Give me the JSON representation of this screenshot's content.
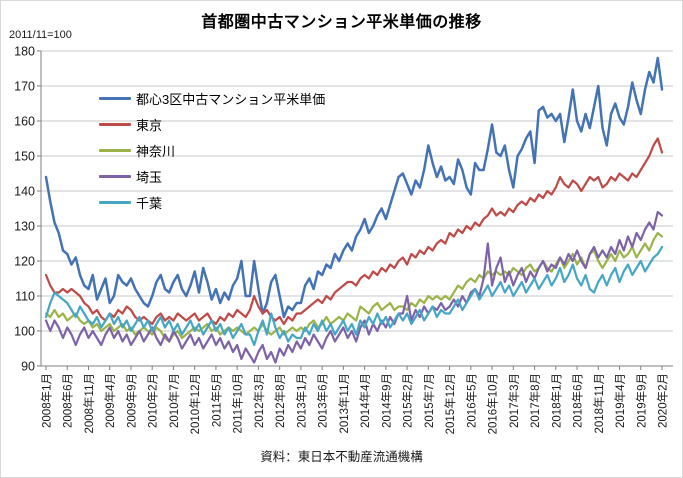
{
  "title": "首都圏中古マンション平米単価の推移",
  "index_note": "2011/11=100",
  "source_note": "資料：東日本不動産流通機構",
  "chart_data": {
    "type": "line",
    "title": "首都圏中古マンション平米単価の推移",
    "index_note": "2011/11=100",
    "source": "資料：東日本不動産流通機構",
    "grid": "horizontal",
    "legend_position": "inside-upper-left",
    "x_axis": {
      "unit": "month",
      "start": "2008年1月",
      "end": "2020年2月",
      "tick_interval_months": 5,
      "tick_labels": [
        "2008年1月",
        "2008年6月",
        "2008年11月",
        "2009年4月",
        "2009年9月",
        "2010年2月",
        "2010年7月",
        "2010年12月",
        "2011年5月",
        "2011年10月",
        "2012年3月",
        "2012年8月",
        "2013年1月",
        "2013年6月",
        "2013年11月",
        "2014年4月",
        "2014年9月",
        "2015年2月",
        "2015年7月",
        "2015年12月",
        "2016年5月",
        "2016年10月",
        "2017年3月",
        "2017年8月",
        "2018年1月",
        "2018年6月",
        "2018年11月",
        "2019年4月",
        "2019年9月",
        "2020年2月"
      ]
    },
    "y_axis": {
      "min": 90,
      "max": 180,
      "tick_step": 10,
      "ticks": [
        90,
        100,
        110,
        120,
        130,
        140,
        150,
        160,
        170,
        180
      ]
    },
    "series": [
      {
        "name": "都心3区中古マンション平米単価",
        "id": "toshin-3ku",
        "color": "#4473B5",
        "values": [
          144,
          137,
          131,
          128,
          123,
          122,
          119,
          121,
          116,
          113,
          112,
          116,
          109,
          112,
          115,
          108,
          110,
          116,
          114,
          113,
          115,
          112,
          110,
          108,
          107,
          110,
          114,
          116,
          112,
          111,
          114,
          116,
          112,
          110,
          113,
          117,
          111,
          118,
          114,
          109,
          112,
          108,
          111,
          109,
          113,
          115,
          120,
          110,
          110,
          120,
          112,
          105,
          108,
          114,
          116,
          110,
          104,
          107,
          106,
          108,
          108,
          113,
          115,
          112,
          117,
          116,
          119,
          118,
          122,
          120,
          123,
          125,
          123,
          127,
          129,
          132,
          128,
          130,
          133,
          135,
          132,
          136,
          140,
          144,
          145,
          142,
          139,
          143,
          141,
          146,
          153,
          148,
          144,
          147,
          143,
          144,
          142,
          149,
          146,
          141,
          139,
          148,
          146,
          146,
          152,
          159,
          151,
          150,
          153,
          146,
          141,
          150,
          152,
          155,
          157,
          148,
          163,
          164,
          161,
          162,
          160,
          162,
          154,
          161,
          169,
          160,
          157,
          162,
          158,
          164,
          170,
          158,
          153,
          162,
          165,
          161,
          159,
          164,
          171,
          166,
          162,
          169,
          174,
          171,
          178,
          169
        ]
      },
      {
        "name": "東京",
        "id": "tokyo",
        "color": "#BE4B48",
        "values": [
          116,
          113,
          111,
          111,
          112,
          111,
          112,
          111,
          110,
          108,
          107,
          105,
          106,
          104,
          103,
          105,
          104,
          106,
          105,
          107,
          106,
          104,
          103,
          104,
          103,
          102,
          104,
          105,
          103,
          104,
          103,
          105,
          104,
          103,
          104,
          105,
          103,
          104,
          105,
          103,
          102,
          104,
          103,
          105,
          104,
          106,
          105,
          104,
          106,
          110,
          107,
          105,
          106,
          104,
          103,
          104,
          102,
          104,
          103,
          105,
          105,
          106,
          107,
          108,
          109,
          108,
          110,
          109,
          111,
          112,
          113,
          114,
          114,
          113,
          115,
          116,
          115,
          117,
          116,
          118,
          117,
          119,
          118,
          120,
          121,
          119,
          122,
          121,
          123,
          122,
          124,
          123,
          125,
          126,
          125,
          128,
          127,
          129,
          128,
          130,
          129,
          131,
          130,
          132,
          133,
          135,
          133,
          134,
          133,
          135,
          134,
          136,
          137,
          136,
          138,
          137,
          139,
          138,
          140,
          139,
          141,
          144,
          142,
          141,
          143,
          142,
          140,
          142,
          144,
          143,
          144,
          141,
          142,
          144,
          143,
          145,
          144,
          143,
          145,
          144,
          146,
          148,
          150,
          153,
          155,
          151
        ]
      },
      {
        "name": "神奈川",
        "id": "kanagawa",
        "color": "#9BB44A",
        "values": [
          105,
          104,
          106,
          104,
          105,
          103,
          104,
          105,
          103,
          102,
          103,
          101,
          102,
          100,
          101,
          102,
          100,
          101,
          102,
          100,
          101,
          99,
          100,
          101,
          100,
          99,
          101,
          100,
          98,
          97,
          99,
          100,
          98,
          99,
          100,
          101,
          100,
          101,
          102,
          100,
          101,
          99,
          100,
          101,
          100,
          101,
          100,
          99,
          100,
          101,
          100,
          102,
          100,
          99,
          100,
          101,
          99,
          100,
          101,
          100,
          101,
          100,
          102,
          103,
          101,
          102,
          104,
          102,
          103,
          104,
          103,
          105,
          104,
          103,
          107,
          106,
          105,
          107,
          108,
          106,
          107,
          108,
          106,
          107,
          107,
          106,
          108,
          107,
          109,
          108,
          110,
          109,
          110,
          109,
          110,
          109,
          111,
          113,
          112,
          114,
          115,
          114,
          116,
          115,
          117,
          116,
          117,
          116,
          117,
          116,
          118,
          117,
          116,
          118,
          119,
          117,
          118,
          120,
          118,
          117,
          119,
          121,
          118,
          120,
          122,
          119,
          121,
          118,
          122,
          123,
          120,
          118,
          120,
          122,
          120,
          123,
          121,
          122,
          124,
          121,
          123,
          125,
          123,
          126,
          128,
          127
        ]
      },
      {
        "name": "埼玉",
        "id": "saitama",
        "color": "#7E62A8",
        "values": [
          103,
          100,
          103,
          101,
          98,
          101,
          99,
          96,
          99,
          101,
          98,
          100,
          98,
          96,
          99,
          101,
          98,
          100,
          97,
          99,
          96,
          98,
          100,
          97,
          99,
          101,
          98,
          96,
          99,
          97,
          100,
          98,
          95,
          97,
          99,
          96,
          98,
          95,
          97,
          99,
          96,
          98,
          95,
          97,
          94,
          96,
          92,
          95,
          93,
          91,
          94,
          96,
          92,
          94,
          91,
          95,
          93,
          96,
          94,
          97,
          95,
          98,
          96,
          99,
          97,
          95,
          98,
          100,
          97,
          99,
          101,
          98,
          100,
          97,
          101,
          103,
          99,
          102,
          100,
          103,
          101,
          104,
          102,
          105,
          105,
          110,
          103,
          106,
          104,
          107,
          105,
          107,
          106,
          108,
          106,
          107,
          109,
          107,
          110,
          108,
          111,
          112,
          110,
          115,
          125,
          113,
          118,
          121,
          114,
          117,
          113,
          116,
          118,
          114,
          117,
          115,
          118,
          120,
          117,
          119,
          118,
          121,
          119,
          122,
          120,
          123,
          120,
          118,
          122,
          124,
          121,
          123,
          121,
          124,
          122,
          126,
          123,
          127,
          124,
          128,
          126,
          129,
          131,
          129,
          134,
          133
        ]
      },
      {
        "name": "千葉",
        "id": "chiba",
        "color": "#45A6C6",
        "values": [
          104,
          108,
          111,
          110,
          109,
          108,
          106,
          104,
          107,
          105,
          103,
          102,
          104,
          101,
          103,
          105,
          102,
          104,
          101,
          103,
          100,
          102,
          104,
          101,
          103,
          100,
          102,
          104,
          101,
          103,
          100,
          102,
          99,
          101,
          103,
          100,
          102,
          99,
          101,
          103,
          100,
          102,
          99,
          101,
          98,
          100,
          102,
          99,
          99,
          96,
          100,
          103,
          99,
          105,
          101,
          98,
          100,
          97,
          99,
          98,
          98,
          101,
          99,
          102,
          100,
          103,
          100,
          102,
          99,
          101,
          103,
          100,
          102,
          99,
          103,
          101,
          104,
          102,
          105,
          102,
          104,
          101,
          103,
          105,
          103,
          105,
          102,
          104,
          106,
          103,
          105,
          107,
          104,
          106,
          105,
          105,
          107,
          109,
          106,
          108,
          110,
          112,
          109,
          111,
          113,
          110,
          112,
          114,
          111,
          113,
          110,
          112,
          114,
          111,
          113,
          115,
          112,
          114,
          116,
          113,
          115,
          118,
          114,
          116,
          119,
          115,
          113,
          116,
          112,
          111,
          114,
          116,
          113,
          116,
          118,
          114,
          117,
          119,
          116,
          118,
          120,
          117,
          119,
          121,
          122,
          124
        ]
      }
    ]
  }
}
